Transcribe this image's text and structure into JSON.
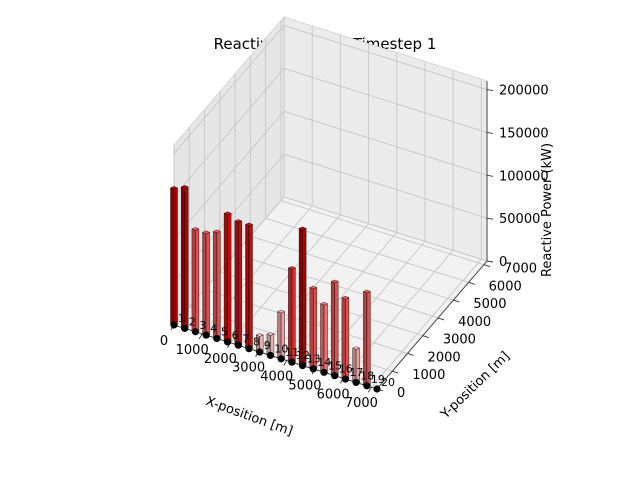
{
  "chart_data": {
    "type": "bar3d",
    "title": "Reactive Power at Timestep 1",
    "xlabel": "X-position [m]",
    "ylabel": "Y-position [m]",
    "zlabel": "Reactive Power (kW)",
    "xticks": [
      "0",
      "1000",
      "2000",
      "3000",
      "4000",
      "5000",
      "6000",
      "7000"
    ],
    "yticks": [
      "0",
      "1000",
      "2000",
      "3000",
      "4000",
      "5000",
      "6000",
      "7000"
    ],
    "zticks": [
      "0",
      "50000",
      "100000",
      "150000",
      "200000"
    ],
    "xlim": [
      0,
      7200
    ],
    "ylim": [
      0,
      7200
    ],
    "zlim": [
      0,
      210000
    ],
    "grid": true,
    "node_labels": [
      "1",
      "2",
      "3",
      "4",
      "5",
      "6",
      "7",
      "8",
      "9",
      "10",
      "11",
      "12",
      "13",
      "14",
      "15",
      "16",
      "17",
      "18",
      "19",
      "20"
    ],
    "nodes": [
      {
        "x": 0,
        "y": 0,
        "value": 160000,
        "color": "#b00000"
      },
      {
        "x": 380,
        "y": 0,
        "value": 165000,
        "color": "#b00000"
      },
      {
        "x": 760,
        "y": 0,
        "value": 120000,
        "color": "#e05050"
      },
      {
        "x": 1140,
        "y": 0,
        "value": 120000,
        "color": "#e05050"
      },
      {
        "x": 1520,
        "y": 0,
        "value": 125000,
        "color": "#e05050"
      },
      {
        "x": 1900,
        "y": 0,
        "value": 150000,
        "color": "#c01010"
      },
      {
        "x": 2280,
        "y": 0,
        "value": 145000,
        "color": "#c01010"
      },
      {
        "x": 2660,
        "y": 0,
        "value": 145000,
        "color": "#c01010"
      },
      {
        "x": 3040,
        "y": 0,
        "value": 20000,
        "color": "#e8b0b0"
      },
      {
        "x": 3420,
        "y": 0,
        "value": 25000,
        "color": "#e8b0b0"
      },
      {
        "x": 3800,
        "y": 0,
        "value": 55000,
        "color": "#e8a0a0"
      },
      {
        "x": 4180,
        "y": 0,
        "value": 110000,
        "color": "#d03030"
      },
      {
        "x": 4560,
        "y": 0,
        "value": 160000,
        "color": "#b00000"
      },
      {
        "x": 4940,
        "y": 0,
        "value": 95000,
        "color": "#e05050"
      },
      {
        "x": 5320,
        "y": 0,
        "value": 80000,
        "color": "#e87070"
      },
      {
        "x": 5700,
        "y": 0,
        "value": 110000,
        "color": "#e05050"
      },
      {
        "x": 6080,
        "y": 0,
        "value": 95000,
        "color": "#e05050"
      },
      {
        "x": 6460,
        "y": 0,
        "value": 40000,
        "color": "#e8a0a0"
      },
      {
        "x": 6840,
        "y": 0,
        "value": 110000,
        "color": "#e05050"
      },
      {
        "x": 7200,
        "y": 0,
        "value": 0,
        "color": "#e05050"
      }
    ]
  }
}
